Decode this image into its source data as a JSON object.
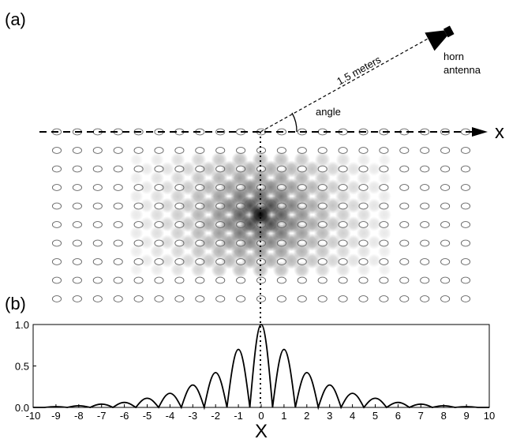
{
  "panels": {
    "a": {
      "label": "(a)",
      "distance_label": "1.5 meters",
      "antenna_label_line1": "horn",
      "antenna_label_line2": "antenna",
      "angle_label": "angle",
      "axis_label": "x"
    },
    "b": {
      "label": "(b)"
    }
  },
  "lattice": {
    "rows": 10,
    "columns": 21
  },
  "chart_data": {
    "type": "line",
    "title": "",
    "xlabel": "X",
    "ylabel": "",
    "xlim": [
      -10,
      10
    ],
    "ylim": [
      0,
      1.0
    ],
    "xticks": [
      "-10",
      "-9",
      "-8",
      "-7",
      "-6",
      "-5",
      "-4",
      "-3",
      "-2",
      "-1",
      "0",
      "1",
      "2",
      "3",
      "4",
      "5",
      "6",
      "7",
      "8",
      "9",
      "10"
    ],
    "yticks": [
      "0.0",
      "0.5",
      "1.0"
    ],
    "grid": false,
    "series": [
      {
        "x": [
          -10,
          -9.5,
          -9,
          -8.5,
          -8,
          -7.5,
          -7,
          -6.5,
          -6,
          -5.5,
          -5,
          -4.5,
          -4,
          -3.5,
          -3,
          -2.5,
          -2,
          -1.5,
          -1,
          -0.5,
          0,
          0.5,
          1,
          1.5,
          2,
          2.5,
          3,
          3.5,
          4,
          4.5,
          5,
          5.5,
          6,
          6.5,
          7,
          7.5,
          8,
          8.5,
          9,
          9.5,
          10
        ],
        "y": [
          0.0,
          0.0,
          0.01,
          0.0,
          0.02,
          0.0,
          0.04,
          0.0,
          0.06,
          0.0,
          0.11,
          0.0,
          0.17,
          0.0,
          0.27,
          0.0,
          0.42,
          0.0,
          0.7,
          0.0,
          1.0,
          0.0,
          0.7,
          0.0,
          0.42,
          0.0,
          0.27,
          0.0,
          0.17,
          0.0,
          0.11,
          0.0,
          0.06,
          0.0,
          0.04,
          0.0,
          0.02,
          0.0,
          0.01,
          0.0,
          0.0
        ]
      }
    ]
  }
}
